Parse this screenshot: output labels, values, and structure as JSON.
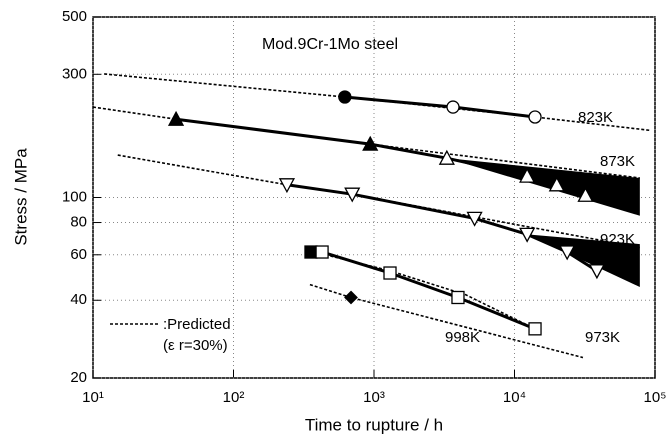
{
  "chart_data": {
    "type": "scatter",
    "title": "Mod.9Cr-1Mo steel",
    "xlabel": "Time to rupture   / h",
    "ylabel": "Stress   / MPa",
    "xscale": "log",
    "yscale": "log",
    "xlim": [
      10,
      100000
    ],
    "ylim": [
      20,
      500
    ],
    "xticks": [
      {
        "value": 10,
        "label": "10¹"
      },
      {
        "value": 100,
        "label": "10²"
      },
      {
        "value": 1000,
        "label": "10³"
      },
      {
        "value": 10000,
        "label": "10⁴"
      },
      {
        "value": 100000,
        "label": "10⁵"
      }
    ],
    "yticks": [
      20,
      40,
      60,
      80,
      100,
      300,
      500
    ],
    "grid": true,
    "color": "#000000",
    "series": [
      {
        "name": "823K",
        "marker": "circle",
        "x": [
          620,
          3650,
          14000
        ],
        "values": [
          245,
          224,
          205
        ],
        "filled": [
          true,
          false,
          false
        ]
      },
      {
        "name": "873K",
        "marker": "triangle",
        "x": [
          39,
          940,
          3300,
          12300,
          20000,
          32000
        ],
        "values": [
          201,
          161,
          142,
          121,
          112,
          102
        ],
        "filled": [
          true,
          true,
          false,
          false,
          false,
          false
        ]
      },
      {
        "name": "923K",
        "marker": "triangle-down",
        "x": [
          240,
          700,
          5200,
          12300,
          23700,
          38600
        ],
        "values": [
          112,
          103,
          83,
          72,
          61.5,
          52
        ],
        "filled": [
          false,
          false,
          false,
          false,
          false,
          false
        ]
      },
      {
        "name": "973K",
        "marker": "square",
        "x": [
          356,
          427,
          1300,
          3960,
          14000
        ],
        "values": [
          61.5,
          61.5,
          51,
          41,
          31
        ],
        "filled": [
          true,
          false,
          false,
          false,
          false
        ]
      },
      {
        "name": "998K",
        "marker": "diamond",
        "x": [
          686
        ],
        "values": [
          41
        ],
        "filled": [
          true
        ]
      }
    ],
    "predicted": {
      "label": ":Predicted",
      "note": "(ε r=30%)",
      "lines": [
        {
          "x": [
            12,
            620,
            14000,
            92000
          ],
          "values": [
            301,
            245,
            205,
            182
          ]
        },
        {
          "x": [
            10,
            39,
            940,
            78000
          ],
          "values": [
            224,
            201,
            161,
            119
          ]
        },
        {
          "x": [
            15,
            240,
            700,
            78000
          ],
          "values": [
            146,
            112,
            103,
            64
          ]
        },
        {
          "x": [
            356,
            1300,
            4500,
            14000
          ],
          "values": [
            62,
            52,
            42,
            31
          ]
        },
        {
          "x": [
            350,
            686,
            30700
          ],
          "values": [
            46,
            41,
            24
          ]
        }
      ]
    },
    "bands": [
      {
        "x": [
          3300,
          78000
        ],
        "upper": [
          142,
          119
        ],
        "lower": [
          142,
          85
        ]
      },
      {
        "x": [
          12300,
          78000
        ],
        "upper": [
          72,
          66
        ],
        "lower": [
          72,
          45
        ]
      }
    ]
  }
}
